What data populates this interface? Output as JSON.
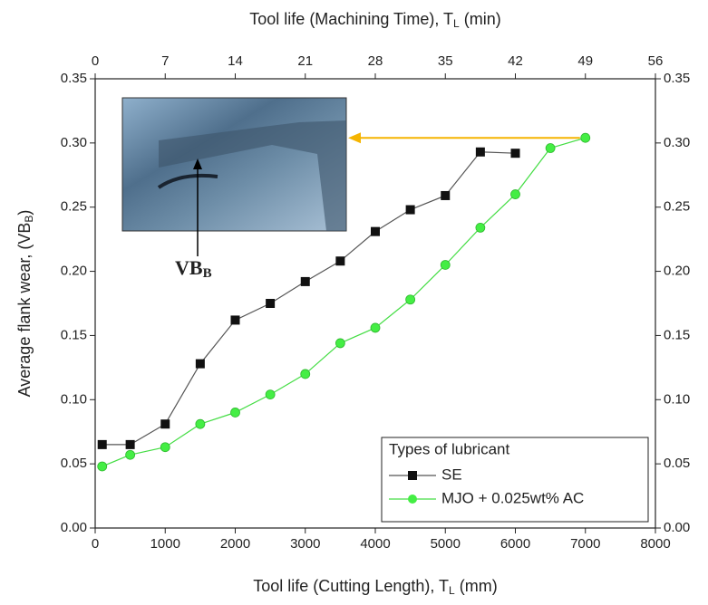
{
  "chart_data": {
    "type": "line",
    "x_label": [
      "Tool life (Cutting Length), T",
      "L",
      " (mm)"
    ],
    "top_x_label": [
      "Tool life (Machining Time), T",
      "L",
      " (min)"
    ],
    "y_label": [
      "Average flank wear, (VB",
      "B",
      ")"
    ],
    "annotation": [
      "VB",
      "B"
    ],
    "xlim": [
      0,
      8000
    ],
    "xticks": [
      0,
      1000,
      2000,
      3000,
      4000,
      5000,
      6000,
      7000,
      8000
    ],
    "top_xlim": [
      0,
      56
    ],
    "top_xticks": [
      0,
      7,
      14,
      21,
      28,
      35,
      42,
      49,
      56
    ],
    "ylim": [
      0,
      0.35
    ],
    "yticks": [
      {
        "value": 0,
        "label": "0.00"
      },
      {
        "value": 0.05,
        "label": "0.05"
      },
      {
        "value": 0.1,
        "label": "0.10"
      },
      {
        "value": 0.15,
        "label": "0.15"
      },
      {
        "value": 0.2,
        "label": "0.20"
      },
      {
        "value": 0.25,
        "label": "0.25"
      },
      {
        "value": 0.3,
        "label": "0.30"
      },
      {
        "value": 0.35,
        "label": "0.35"
      }
    ],
    "mirror_y": true,
    "legend_title": "Types of lubricant",
    "legend": "lower right",
    "series": [
      {
        "name": "SE",
        "color": "#555555",
        "marker_color": "#111111",
        "marker": "square",
        "x": [
          100,
          500,
          1000,
          1500,
          2000,
          2500,
          3000,
          3500,
          4000,
          4500,
          5000,
          5500,
          6000
        ],
        "values": [
          0.065,
          0.065,
          0.081,
          0.128,
          0.162,
          0.175,
          0.192,
          0.208,
          0.231,
          0.248,
          0.259,
          0.293,
          0.292
        ]
      },
      {
        "name": "MJO + 0.025wt% AC",
        "color": "#44dd44",
        "marker_color": "#44ee44",
        "marker": "circle",
        "x": [
          100,
          500,
          1000,
          1500,
          2000,
          2500,
          3000,
          3500,
          4000,
          4500,
          5000,
          5500,
          6000,
          6500,
          7000
        ],
        "values": [
          0.048,
          0.057,
          0.063,
          0.081,
          0.09,
          0.104,
          0.12,
          0.144,
          0.156,
          0.178,
          0.205,
          0.234,
          0.26,
          0.296,
          0.304
        ]
      }
    ]
  }
}
